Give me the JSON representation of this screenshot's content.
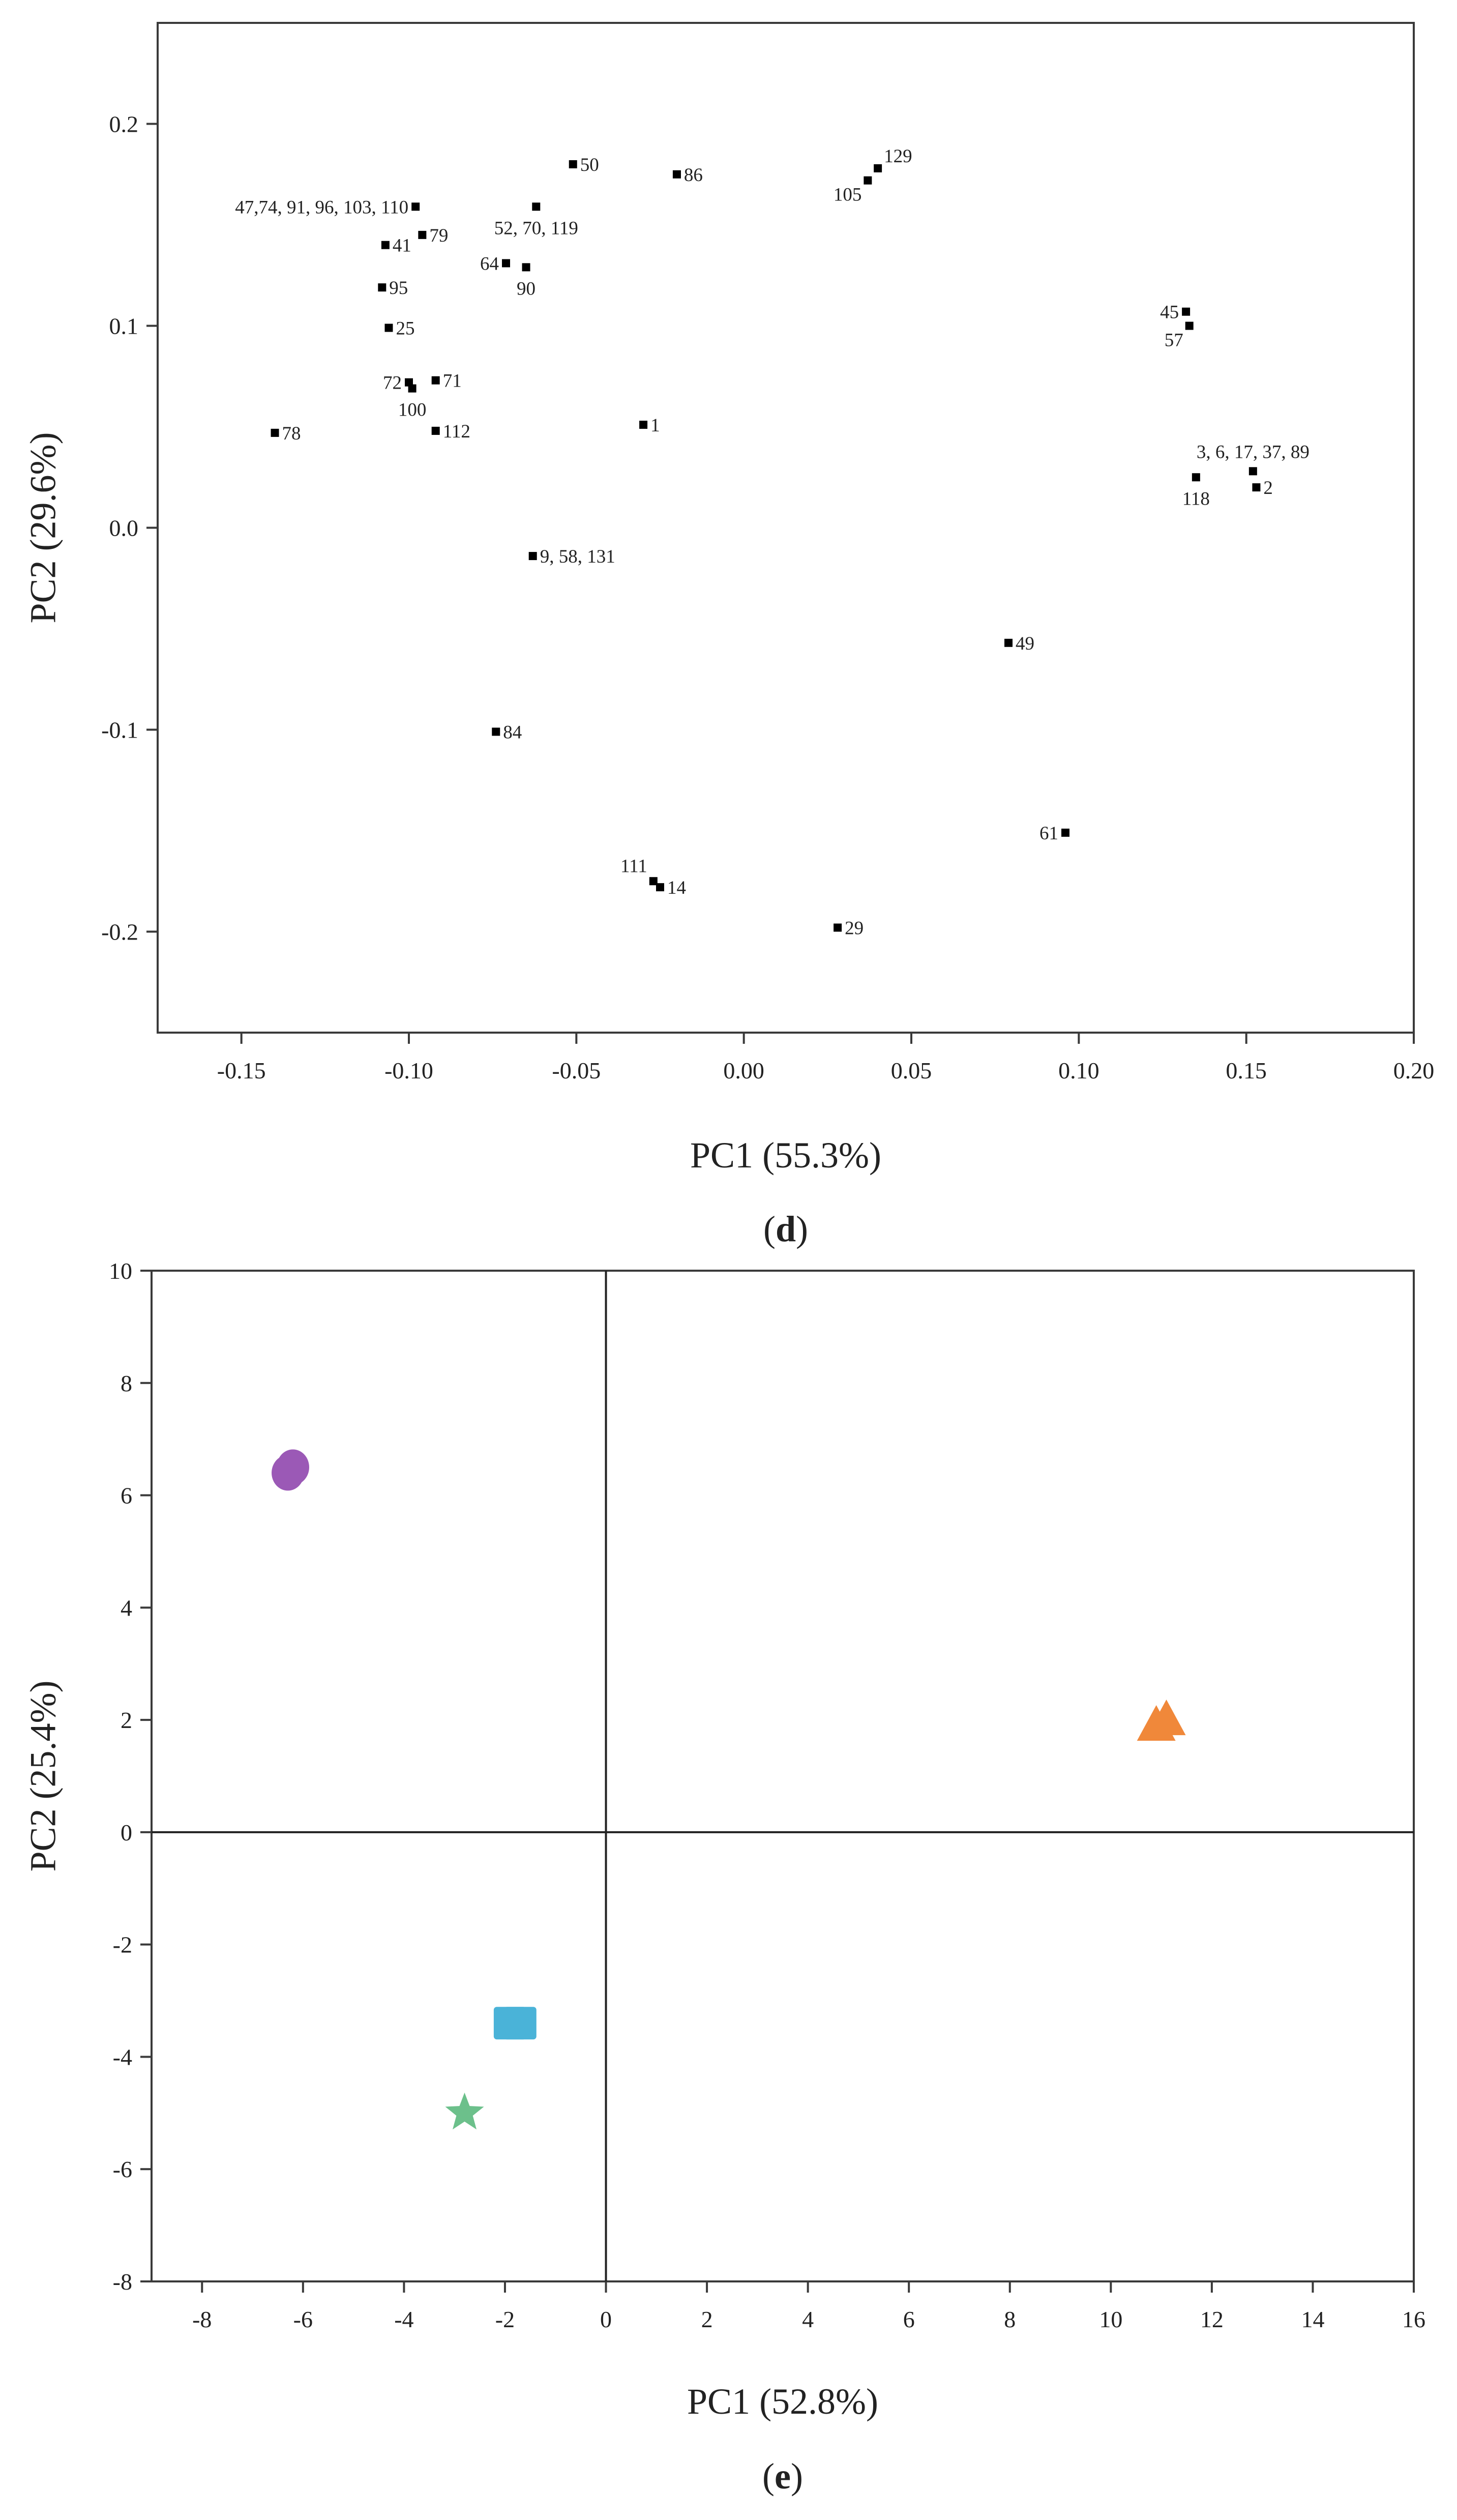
{
  "chart_data": [
    {
      "type": "scatter",
      "panel": "d",
      "caption_open": "(",
      "caption_letter": "d",
      "caption_close": ")",
      "xlabel": "PC1 (55.3%)",
      "ylabel": "PC2 (29.6%)",
      "xlim": [
        -0.175,
        0.2
      ],
      "ylim": [
        -0.25,
        0.25
      ],
      "xticks": [
        -0.15,
        -0.1,
        -0.05,
        0.0,
        0.05,
        0.1,
        0.15,
        0.2
      ],
      "xtick_labels": [
        "-0.15",
        "-0.10",
        "-0.05",
        "0.00",
        "0.05",
        "0.10",
        "0.15",
        "0.20"
      ],
      "yticks": [
        -0.2,
        -0.1,
        0.0,
        0.1,
        0.2
      ],
      "ytick_labels": [
        "-0.2",
        "-0.1",
        "0.0",
        "0.1",
        "0.2"
      ],
      "marker_color": "#000000",
      "points": [
        {
          "x": -0.051,
          "y": 0.18,
          "label": "50",
          "pos": "right"
        },
        {
          "x": -0.02,
          "y": 0.175,
          "label": "86",
          "pos": "right"
        },
        {
          "x": 0.04,
          "y": 0.178,
          "label": "129",
          "pos": "upright"
        },
        {
          "x": 0.037,
          "y": 0.172,
          "label": "105",
          "pos": "downleft"
        },
        {
          "x": -0.098,
          "y": 0.159,
          "label": "47,74, 91, 96, 103, 110",
          "pos": "left"
        },
        {
          "x": -0.062,
          "y": 0.159,
          "label": "52, 70, 119",
          "pos": "below"
        },
        {
          "x": -0.096,
          "y": 0.145,
          "label": "79",
          "pos": "right"
        },
        {
          "x": -0.107,
          "y": 0.14,
          "label": "41",
          "pos": "right"
        },
        {
          "x": -0.071,
          "y": 0.131,
          "label": "64",
          "pos": "left"
        },
        {
          "x": -0.065,
          "y": 0.129,
          "label": "90",
          "pos": "below"
        },
        {
          "x": -0.108,
          "y": 0.119,
          "label": "95",
          "pos": "right"
        },
        {
          "x": -0.106,
          "y": 0.099,
          "label": "25",
          "pos": "right"
        },
        {
          "x": 0.132,
          "y": 0.107,
          "label": "45",
          "pos": "left"
        },
        {
          "x": 0.133,
          "y": 0.1,
          "label": "57",
          "pos": "downleft"
        },
        {
          "x": -0.1,
          "y": 0.072,
          "label": "72",
          "pos": "left"
        },
        {
          "x": -0.092,
          "y": 0.073,
          "label": "71",
          "pos": "right"
        },
        {
          "x": -0.099,
          "y": 0.069,
          "label": "100",
          "pos": "below"
        },
        {
          "x": -0.14,
          "y": 0.047,
          "label": "78",
          "pos": "right"
        },
        {
          "x": -0.092,
          "y": 0.048,
          "label": "112",
          "pos": "right"
        },
        {
          "x": -0.03,
          "y": 0.051,
          "label": "1",
          "pos": "right"
        },
        {
          "x": 0.152,
          "y": 0.028,
          "label": "3, 6, 17, 37, 89",
          "pos": "above"
        },
        {
          "x": 0.135,
          "y": 0.025,
          "label": "118",
          "pos": "below"
        },
        {
          "x": 0.153,
          "y": 0.02,
          "label": "2",
          "pos": "right"
        },
        {
          "x": -0.063,
          "y": -0.014,
          "label": "9, 58, 131",
          "pos": "right"
        },
        {
          "x": 0.079,
          "y": -0.057,
          "label": "49",
          "pos": "right"
        },
        {
          "x": -0.074,
          "y": -0.101,
          "label": "84",
          "pos": "right"
        },
        {
          "x": 0.096,
          "y": -0.151,
          "label": "61",
          "pos": "left"
        },
        {
          "x": -0.027,
          "y": -0.175,
          "label": "111",
          "pos": "upleft"
        },
        {
          "x": -0.025,
          "y": -0.178,
          "label": "14",
          "pos": "right"
        },
        {
          "x": 0.028,
          "y": -0.198,
          "label": "29",
          "pos": "right"
        }
      ]
    },
    {
      "type": "scatter",
      "panel": "e",
      "caption_open": "(",
      "caption_letter": "e",
      "caption_close": ")",
      "xlabel": "PC1 (52.8%)",
      "ylabel": "PC2 (25.4%)",
      "xlim": [
        -9,
        16
      ],
      "ylim": [
        -8,
        10
      ],
      "xticks": [
        -8,
        -6,
        -4,
        -2,
        0,
        2,
        4,
        6,
        8,
        10,
        12,
        14,
        16
      ],
      "xtick_labels": [
        "-8",
        "-6",
        "-4",
        "-2",
        "0",
        "2",
        "4",
        "6",
        "8",
        "10",
        "12",
        "14",
        "16"
      ],
      "yticks": [
        -8,
        -6,
        -4,
        -2,
        0,
        2,
        4,
        6,
        8,
        10
      ],
      "ytick_labels": [
        "-8",
        "-6",
        "-4",
        "-2",
        "0",
        "2",
        "4",
        "6",
        "8",
        "10"
      ],
      "reference_lines": {
        "x": 0,
        "y": 0
      },
      "groups": [
        {
          "marker": "circle",
          "color": "#9b59b6",
          "points": [
            {
              "x": -6.3,
              "y": 6.4
            },
            {
              "x": -6.2,
              "y": 6.5
            }
          ]
        },
        {
          "marker": "triangle",
          "color": "#f0883a",
          "points": [
            {
              "x": 10.9,
              "y": 1.9
            },
            {
              "x": 11.1,
              "y": 2.0
            }
          ]
        },
        {
          "marker": "square",
          "color": "#4ab3d8",
          "points": [
            {
              "x": -1.9,
              "y": -3.4
            },
            {
              "x": -1.7,
              "y": -3.4
            }
          ]
        },
        {
          "marker": "star",
          "color": "#6cc08b",
          "points": [
            {
              "x": -2.8,
              "y": -5.0
            }
          ]
        }
      ]
    }
  ]
}
